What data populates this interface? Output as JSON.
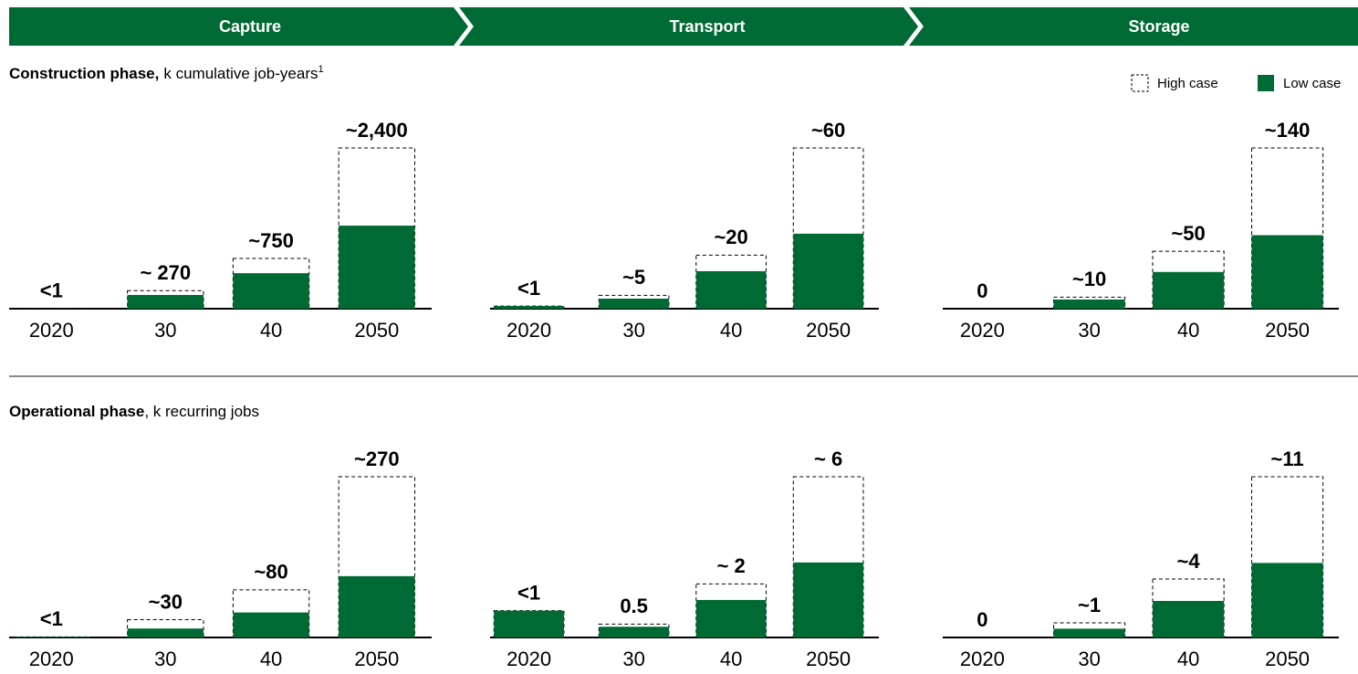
{
  "stages": [
    "Capture",
    "Transport",
    "Storage"
  ],
  "sections": [
    {
      "title_bold": "Construction phase,",
      "title_rest": "k cumulative job-years",
      "footnote_mark": "1"
    },
    {
      "title_bold": "Operational phase",
      "title_rest": ", k recurring jobs"
    }
  ],
  "chart_data": [
    {
      "type": "bar",
      "categories": [
        "2020",
        "30",
        "40",
        "2050"
      ],
      "series": [
        {
          "name": "High case",
          "color": "#ffffff",
          "values": [
            1,
            270,
            750,
            2400
          ],
          "value_labels": [
            "<1",
            "~ 270",
            "~750",
            "~2,400"
          ]
        },
        {
          "name": "Low case",
          "color": "#006a34",
          "values": [
            1,
            205,
            530,
            1240
          ]
        }
      ]
    },
    {
      "type": "bar",
      "categories": [
        "2020",
        "30",
        "40",
        "2050"
      ],
      "series": [
        {
          "name": "High case",
          "color": "#ffffff",
          "values": [
            1,
            5,
            20,
            60
          ],
          "value_labels": [
            "<1",
            "~5",
            "~20",
            "~60"
          ]
        },
        {
          "name": "Low case",
          "color": "#006a34",
          "values": [
            1,
            3.75,
            14,
            28
          ]
        }
      ]
    },
    {
      "type": "bar",
      "categories": [
        "2020",
        "30",
        "40",
        "2050"
      ],
      "series": [
        {
          "name": "High case",
          "color": "#ffffff",
          "values": [
            0,
            10,
            50,
            140
          ],
          "value_labels": [
            "0",
            "~10",
            "~50",
            "~140"
          ]
        },
        {
          "name": "Low case",
          "color": "#006a34",
          "values": [
            0,
            8,
            32,
            64
          ]
        }
      ]
    },
    {
      "type": "bar",
      "categories": [
        "2020",
        "30",
        "40",
        "2050"
      ],
      "series": [
        {
          "name": "High case",
          "color": "#ffffff",
          "values": [
            1,
            30,
            80,
            270
          ],
          "value_labels": [
            "<1",
            "~30",
            "~80",
            "~270"
          ]
        },
        {
          "name": "Low case",
          "color": "#006a34",
          "values": [
            1,
            15,
            42,
            103
          ]
        }
      ]
    },
    {
      "type": "bar",
      "categories": [
        "2020",
        "30",
        "40",
        "2050"
      ],
      "series": [
        {
          "name": "High case",
          "color": "#ffffff",
          "values": [
            1,
            0.5,
            2,
            6
          ],
          "value_labels": [
            "<1",
            "0.5",
            "~ 2",
            "~ 6"
          ]
        },
        {
          "name": "Low case",
          "color": "#006a34",
          "values": [
            1,
            0.4,
            1.4,
            2.8
          ]
        }
      ]
    },
    {
      "type": "bar",
      "categories": [
        "2020",
        "30",
        "40",
        "2050"
      ],
      "series": [
        {
          "name": "High case",
          "color": "#ffffff",
          "values": [
            0,
            1,
            4,
            11
          ],
          "value_labels": [
            "0",
            "~1",
            "~4",
            "~11"
          ]
        },
        {
          "name": "Low case",
          "color": "#006a34",
          "values": [
            0,
            0.6,
            2.5,
            5.1
          ]
        }
      ]
    }
  ]
}
